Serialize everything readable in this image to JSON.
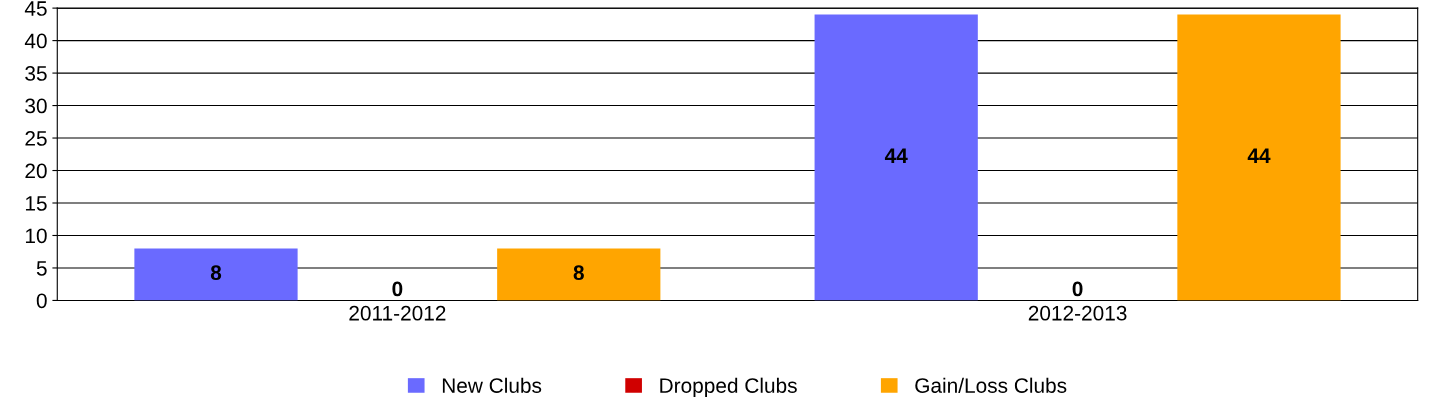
{
  "chart_data": {
    "type": "bar",
    "categories": [
      "2011-2012",
      "2012-2013"
    ],
    "series": [
      {
        "name": "New Clubs",
        "color": "#6a6aff",
        "values": [
          8,
          44
        ]
      },
      {
        "name": "Dropped Clubs",
        "color": "#d00000",
        "values": [
          0,
          0
        ]
      },
      {
        "name": "Gain/Loss Clubs",
        "color": "#ffa500",
        "values": [
          8,
          44
        ]
      }
    ],
    "ylim": [
      0,
      45
    ],
    "yticks": [
      0,
      5,
      10,
      15,
      20,
      25,
      30,
      35,
      40,
      45
    ],
    "grid": "y",
    "legend": "bottom",
    "data_labels": true
  }
}
